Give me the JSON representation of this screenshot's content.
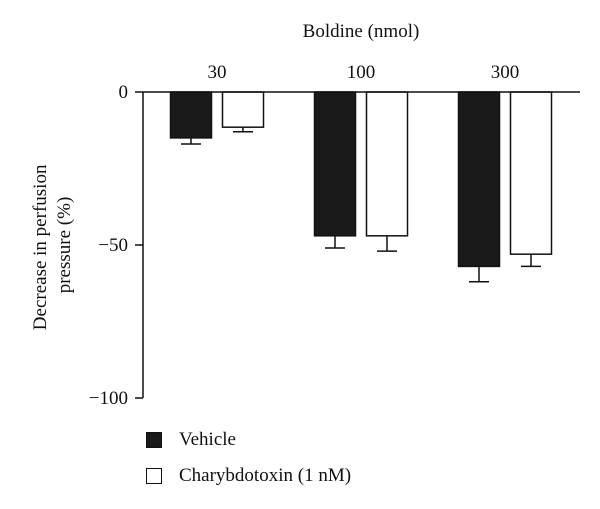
{
  "chart_data": {
    "type": "bar",
    "title": "Boldine (nmol)",
    "xlabel": "",
    "ylabel": "Decrease in perfusion pressure (%)",
    "ylabel_lines": [
      "Decrease in perfusion",
      "pressure (%)"
    ],
    "categories": [
      "30",
      "100",
      "300"
    ],
    "ylim": [
      -100,
      0
    ],
    "yticks": [
      0,
      -50,
      -100
    ],
    "ytick_labels": [
      "0",
      "−50",
      "−100"
    ],
    "category_axis_position": "top",
    "legend_position": "bottom-left",
    "series": [
      {
        "name": "Vehicle",
        "fill": "#1a1a1a",
        "values": [
          -15,
          -47,
          -57
        ],
        "errors": [
          2,
          4,
          5
        ]
      },
      {
        "name": "Charybdotoxin (1 nM)",
        "fill": "#ffffff",
        "values": [
          -11.5,
          -47,
          -53
        ],
        "errors": [
          1.5,
          5,
          4
        ]
      }
    ]
  }
}
